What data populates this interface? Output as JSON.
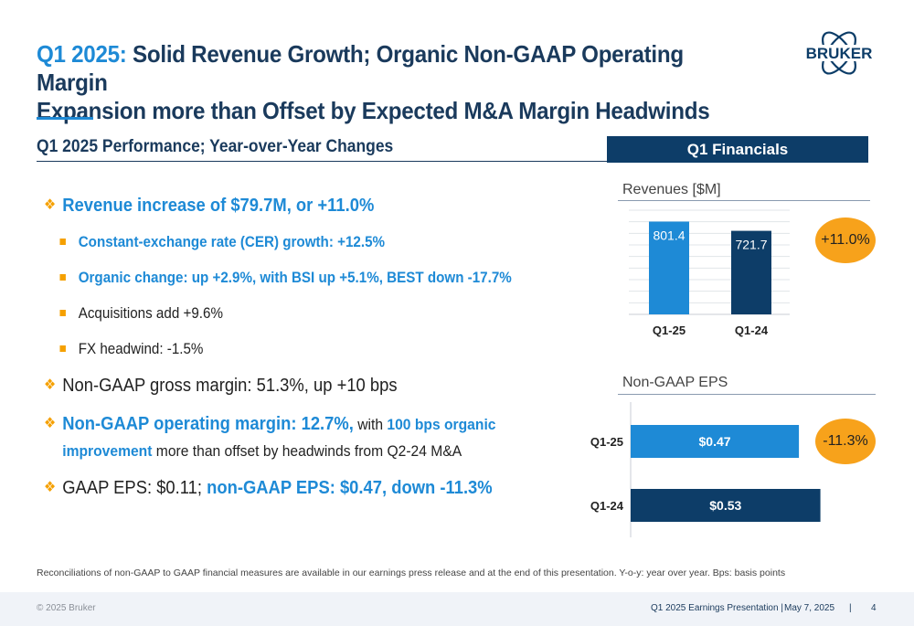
{
  "title": {
    "accent": "Q1 2025:",
    "line1_rest": " Solid Revenue Growth; Organic Non-GAAP Operating Margin",
    "line2": "Expansion more than Offset by Expected M&A Margin Headwinds"
  },
  "logo": {
    "text": "BRUKER",
    "icon": "atom-logo-icon",
    "color": "#0d3d68"
  },
  "section_heading": "Q1 2025 Performance; Year-over-Year Changes",
  "financials_header": "Q1 Financials",
  "bullets": {
    "revenue": "Revenue increase of $79.7M, or +11.0%",
    "cer": "Constant-exchange rate (CER) growth: +12.5%",
    "organic": "Organic change: up +2.9%, with BSI up +5.1%, BEST down -17.7%",
    "acquisitions": "Acquisitions add +9.6%",
    "fx": "FX headwind: -1.5%",
    "gross_margin": "Non-GAAP gross margin: 51.3%, up +10 bps",
    "op_margin_a": "Non-GAAP operating margin: 12.7%,",
    "op_margin_b": " with ",
    "op_margin_c": "100 bps organic",
    "op_margin_d": "improvement",
    "op_margin_e": " more than offset by headwinds from Q2-24 M&A",
    "eps_a": "GAAP EPS: $0.11; ",
    "eps_b": "non-GAAP EPS: $0.47, down -11.3%"
  },
  "chart_data": [
    {
      "type": "bar",
      "title": "Revenues [$M]",
      "categories": [
        "Q1-25",
        "Q1-24"
      ],
      "values": [
        801.4,
        721.7
      ],
      "labels": [
        "801.4",
        "721.7"
      ],
      "colors": [
        "#1e8ad6",
        "#0d3d68"
      ],
      "ylim": [
        0,
        900
      ],
      "grid": true,
      "badge": "+11.0%"
    },
    {
      "type": "bar",
      "orientation": "horizontal",
      "title": "Non-GAAP EPS",
      "categories": [
        "Q1-25",
        "Q1-24"
      ],
      "values": [
        0.47,
        0.53
      ],
      "labels": [
        "$0.47",
        "$0.53"
      ],
      "colors": [
        "#1e8ad6",
        "#0d3d68"
      ],
      "xlim": [
        0,
        0.6
      ],
      "badge": "-11.3%"
    }
  ],
  "footnote": "Reconciliations of non-GAAP to GAAP financial measures are available in our earnings press release and at the end of this presentation. Y-o-y: year over year. Bps: basis points",
  "footer": {
    "copyright": "© 2025 Bruker",
    "presentation": "Q1 2025 Earnings Presentation |",
    "date": "May 7, 2025",
    "separator": "|",
    "page": "4"
  }
}
